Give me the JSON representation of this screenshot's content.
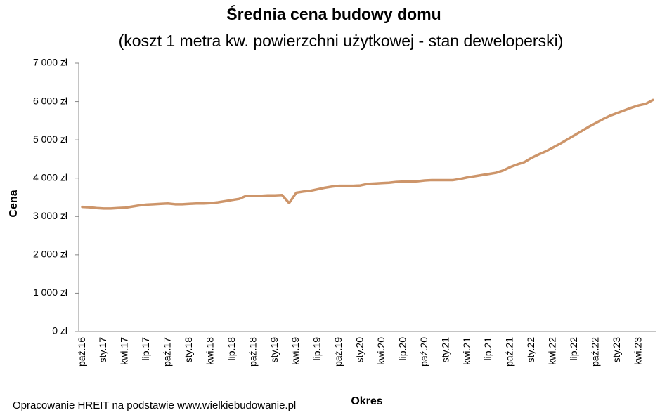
{
  "chart_data": {
    "type": "line",
    "title": "Średnia cena budowy domu",
    "subtitle": "(koszt 1 metra kw. powierzchni  użytkowej - stan deweloperski)",
    "x_label": "Okres",
    "y_label": "Cena",
    "source": "Opracowanie HREIT na podstawie www.wielkiebudowanie.pl",
    "categories": [
      "paź.16",
      null,
      null,
      "sty.17",
      null,
      null,
      "kwi.17",
      null,
      null,
      "lip.17",
      null,
      null,
      "paź.17",
      null,
      null,
      "sty.18",
      null,
      null,
      "kwi.18",
      null,
      null,
      "lip.18",
      null,
      null,
      "paź.18",
      null,
      null,
      "sty.19",
      null,
      null,
      "kwi.19",
      null,
      null,
      "lip.19",
      null,
      null,
      "paź.19",
      null,
      null,
      "sty.20",
      null,
      null,
      "kwi.20",
      null,
      null,
      "lip.20",
      null,
      null,
      "paź.20",
      null,
      null,
      "sty.21",
      null,
      null,
      "kwi.21",
      null,
      null,
      "lip.21",
      null,
      null,
      "paź.21",
      null,
      null,
      "sty.22",
      null,
      null,
      "kwi.22",
      null,
      null,
      "lip.22",
      null,
      null,
      "paź.22",
      null,
      null,
      "sty.23",
      null,
      null,
      "kwi.23",
      null,
      null
    ],
    "series": [
      {
        "name": "Cena",
        "color": "#cd956a",
        "values": [
          3250,
          3240,
          3220,
          3210,
          3210,
          3220,
          3230,
          3260,
          3290,
          3310,
          3320,
          3330,
          3340,
          3320,
          3320,
          3330,
          3340,
          3340,
          3350,
          3370,
          3400,
          3430,
          3460,
          3540,
          3540,
          3540,
          3550,
          3550,
          3560,
          3350,
          3620,
          3650,
          3670,
          3710,
          3750,
          3780,
          3800,
          3800,
          3800,
          3810,
          3850,
          3860,
          3870,
          3880,
          3900,
          3910,
          3910,
          3920,
          3940,
          3950,
          3950,
          3950,
          3950,
          3980,
          4020,
          4050,
          4080,
          4110,
          4140,
          4200,
          4290,
          4360,
          4420,
          4530,
          4620,
          4700,
          4800,
          4900,
          5010,
          5120,
          5230,
          5340,
          5440,
          5540,
          5630,
          5700,
          5770,
          5840,
          5900,
          5940,
          6040
        ]
      }
    ],
    "ylim": [
      0,
      7000
    ],
    "yticks": [
      {
        "value": 0,
        "label": "0 zł"
      },
      {
        "value": 1000,
        "label": "1 000 zł"
      },
      {
        "value": 2000,
        "label": "2 000 zł"
      },
      {
        "value": 3000,
        "label": "3 000 zł"
      },
      {
        "value": 4000,
        "label": "4 000 zł"
      },
      {
        "value": 5000,
        "label": "5 000 zł"
      },
      {
        "value": 6000,
        "label": "6 000 zł"
      },
      {
        "value": 7000,
        "label": "7 000 zł"
      }
    ]
  }
}
